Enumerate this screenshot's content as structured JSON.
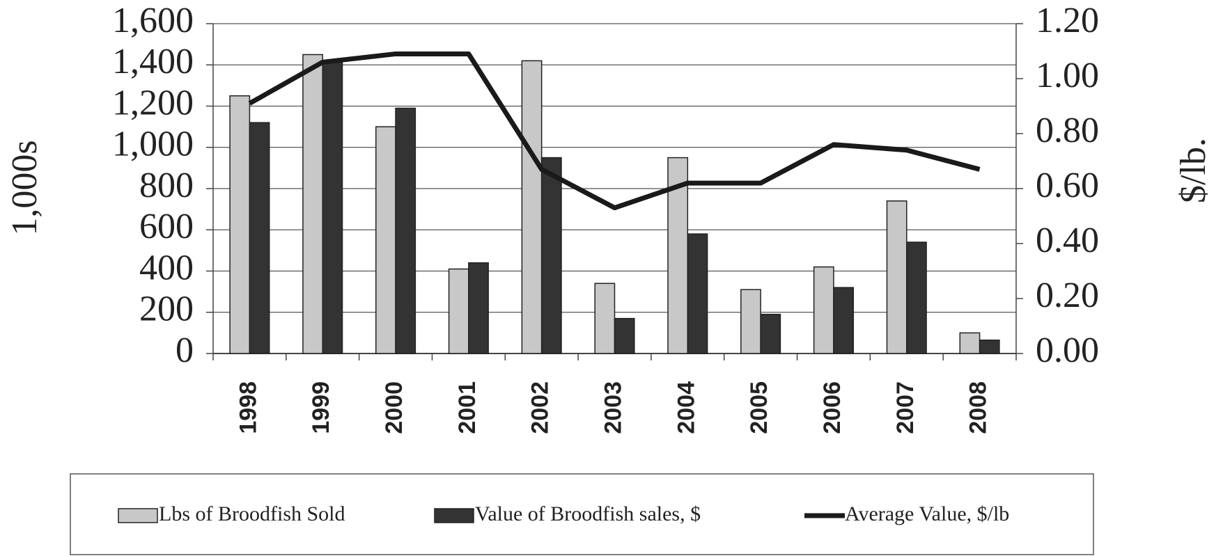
{
  "chart_data": {
    "type": "bar",
    "y_label": "1,000s",
    "y2_label": "$/lb.",
    "categories": [
      "1998",
      "1999",
      "2000",
      "2001",
      "2002",
      "2003",
      "2004",
      "2005",
      "2006",
      "2007",
      "2008"
    ],
    "series": [
      {
        "name": "Lbs of Broodfish Sold",
        "type": "bar",
        "color": "#c8c8c8",
        "values": [
          1250,
          1450,
          1100,
          410,
          1420,
          340,
          950,
          310,
          420,
          740,
          100
        ]
      },
      {
        "name": "Value of Broodfish sales, $",
        "type": "bar",
        "color": "#333333",
        "values": [
          1120,
          1420,
          1190,
          440,
          950,
          170,
          580,
          190,
          320,
          540,
          65
        ]
      },
      {
        "name": "Average Value, $/lb",
        "type": "line",
        "axis": "y2",
        "color": "#1a1a1a",
        "values": [
          0.91,
          1.06,
          1.09,
          1.09,
          0.67,
          0.53,
          0.62,
          0.62,
          0.76,
          0.74,
          0.67
        ]
      }
    ],
    "ylim": [
      0,
      1600
    ],
    "yticks": [
      0,
      200,
      400,
      600,
      800,
      {
        "value": 1000,
        "label": "1,000"
      },
      {
        "value": 1200,
        "label": "1,200"
      },
      {
        "value": 1400,
        "label": "1,400"
      },
      {
        "value": 1600,
        "label": "1,600"
      }
    ],
    "y2lim": [
      0,
      1.2
    ],
    "y2ticks": [
      {
        "value": 0,
        "label": "0.00"
      },
      {
        "value": 0.2,
        "label": "0.20"
      },
      {
        "value": 0.4,
        "label": "0.40"
      },
      {
        "value": 0.6,
        "label": "0.60"
      },
      {
        "value": 0.8,
        "label": "0.80"
      },
      {
        "value": 1,
        "label": "1.00"
      },
      {
        "value": 1.2,
        "label": "1.20"
      }
    ],
    "grid": true,
    "legend": "bottom"
  }
}
